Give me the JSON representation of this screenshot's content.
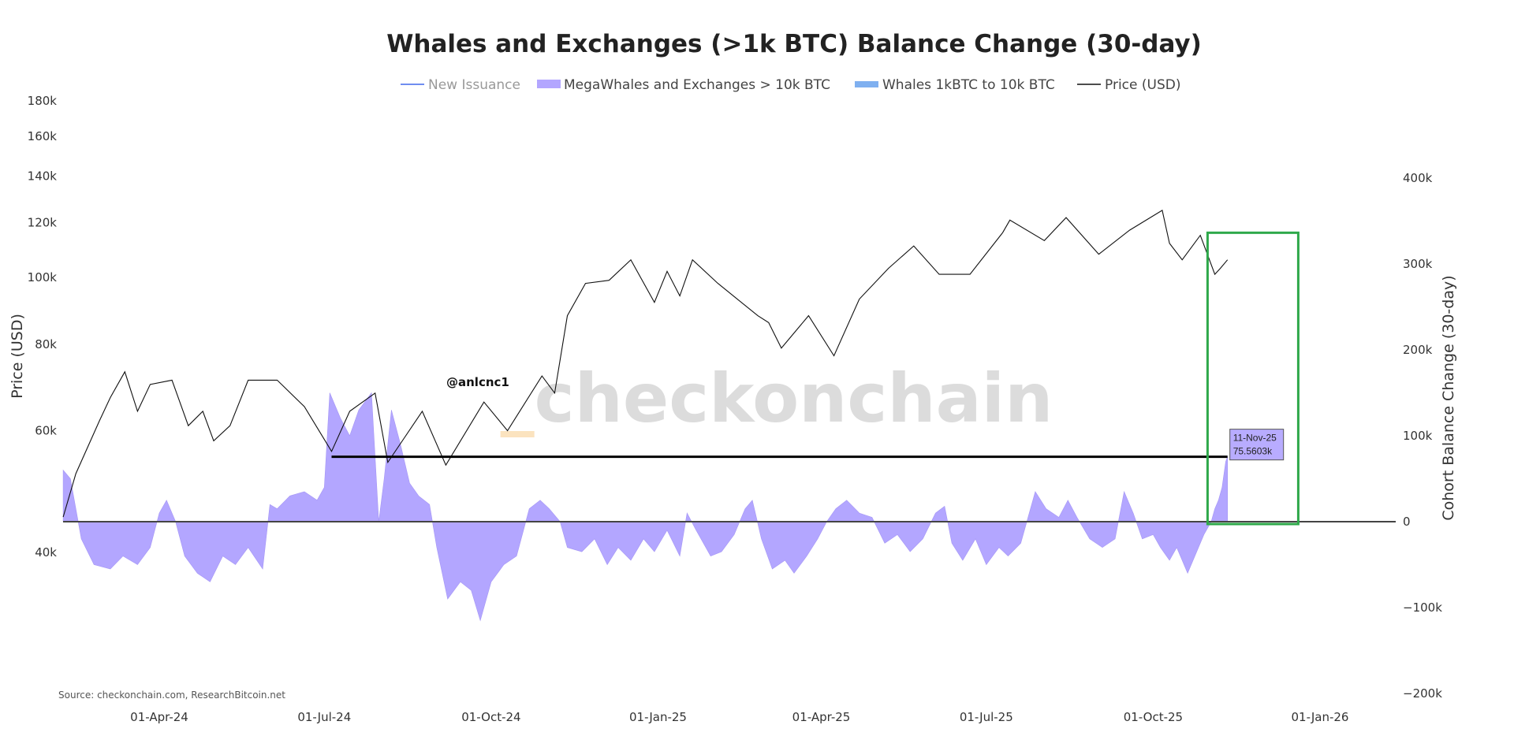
{
  "chart_data": {
    "type": "line+area",
    "title": "Whales and Exchanges (>1k BTC) Balance Change (30-day)",
    "legend": [
      {
        "name": "New Issuance",
        "color": "#6f8df0",
        "kind": "line",
        "hidden": true
      },
      {
        "name": "MegaWhales and Exchanges > 10k BTC",
        "color": "#b3a6ff",
        "kind": "area"
      },
      {
        "name": "Whales 1kBTC to 10k BTC",
        "color": "#7fb0f0",
        "kind": "area"
      },
      {
        "name": "Price (USD)",
        "color": "#111111",
        "kind": "line"
      }
    ],
    "legend_placement": "top-center",
    "ylabel_left": "Price (USD)",
    "ylabel_right": "Cohort Balance Change (30-day)",
    "left_axis": {
      "scale": "log",
      "ticks": [
        "180k",
        "160k",
        "140k",
        "120k",
        "100k",
        "80k",
        "60k",
        "40k"
      ],
      "tick_values": [
        180000,
        160000,
        140000,
        120000,
        100000,
        80000,
        60000,
        40000
      ],
      "range": [
        40000,
        180000
      ]
    },
    "right_axis": {
      "scale": "linear",
      "ticks": [
        "400k",
        "300k",
        "200k",
        "100k",
        "0",
        "−100k",
        "−200k"
      ],
      "tick_values": [
        400000,
        300000,
        200000,
        100000,
        0,
        -100000,
        -200000
      ],
      "range": [
        -200000,
        400000
      ]
    },
    "x_ticks": [
      "01-Apr-24",
      "01-Jul-24",
      "01-Oct-24",
      "01-Jan-25",
      "01-Apr-25",
      "01-Jul-25",
      "01-Oct-25",
      "01-Jan-26"
    ],
    "x_tick_dates": [
      "2024-04-01",
      "2024-07-01",
      "2024-10-01",
      "2025-01-01",
      "2025-04-01",
      "2025-07-01",
      "2025-10-01",
      "2026-01-01"
    ],
    "price_series": [
      [
        "2024-02-08",
        45000
      ],
      [
        "2024-02-15",
        52000
      ],
      [
        "2024-02-28",
        62000
      ],
      [
        "2024-03-05",
        67000
      ],
      [
        "2024-03-13",
        73000
      ],
      [
        "2024-03-20",
        64000
      ],
      [
        "2024-03-27",
        70000
      ],
      [
        "2024-04-08",
        71000
      ],
      [
        "2024-04-17",
        61000
      ],
      [
        "2024-04-25",
        64000
      ],
      [
        "2024-05-01",
        58000
      ],
      [
        "2024-05-10",
        61000
      ],
      [
        "2024-05-20",
        71000
      ],
      [
        "2024-06-05",
        71000
      ],
      [
        "2024-06-20",
        65000
      ],
      [
        "2024-07-05",
        56000
      ],
      [
        "2024-07-15",
        64000
      ],
      [
        "2024-07-29",
        68000
      ],
      [
        "2024-08-05",
        54000
      ],
      [
        "2024-08-24",
        64000
      ],
      [
        "2024-09-06",
        53500
      ],
      [
        "2024-09-27",
        66000
      ],
      [
        "2024-10-10",
        60000
      ],
      [
        "2024-10-29",
        72000
      ],
      [
        "2024-11-05",
        68000
      ],
      [
        "2024-11-12",
        88000
      ],
      [
        "2024-11-22",
        98000
      ],
      [
        "2024-12-05",
        99000
      ],
      [
        "2024-12-17",
        106000
      ],
      [
        "2024-12-30",
        92000
      ],
      [
        "2025-01-06",
        102000
      ],
      [
        "2025-01-13",
        94000
      ],
      [
        "2025-01-20",
        106000
      ],
      [
        "2025-02-03",
        98000
      ],
      [
        "2025-02-25",
        88000
      ],
      [
        "2025-03-03",
        86000
      ],
      [
        "2025-03-10",
        79000
      ],
      [
        "2025-03-25",
        88000
      ],
      [
        "2025-04-08",
        77000
      ],
      [
        "2025-04-22",
        93000
      ],
      [
        "2025-05-08",
        103000
      ],
      [
        "2025-05-22",
        111000
      ],
      [
        "2025-06-05",
        101000
      ],
      [
        "2025-06-22",
        101000
      ],
      [
        "2025-07-10",
        116000
      ],
      [
        "2025-07-14",
        121000
      ],
      [
        "2025-08-02",
        113000
      ],
      [
        "2025-08-14",
        122000
      ],
      [
        "2025-09-01",
        108000
      ],
      [
        "2025-09-18",
        117000
      ],
      [
        "2025-10-06",
        125000
      ],
      [
        "2025-10-10",
        112000
      ],
      [
        "2025-10-17",
        106000
      ],
      [
        "2025-10-27",
        115000
      ],
      [
        "2025-11-04",
        101000
      ],
      [
        "2025-11-07",
        103000
      ],
      [
        "2025-11-11",
        106000
      ]
    ],
    "balance_series": [
      [
        "2024-02-08",
        60000
      ],
      [
        "2024-02-12",
        50000
      ],
      [
        "2024-02-18",
        -20000
      ],
      [
        "2024-02-25",
        -50000
      ],
      [
        "2024-03-05",
        -55000
      ],
      [
        "2024-03-12",
        -40000
      ],
      [
        "2024-03-20",
        -50000
      ],
      [
        "2024-03-27",
        -30000
      ],
      [
        "2024-04-01",
        10000
      ],
      [
        "2024-04-05",
        25000
      ],
      [
        "2024-04-10",
        0
      ],
      [
        "2024-04-15",
        -40000
      ],
      [
        "2024-04-22",
        -60000
      ],
      [
        "2024-04-29",
        -70000
      ],
      [
        "2024-05-06",
        -40000
      ],
      [
        "2024-05-13",
        -50000
      ],
      [
        "2024-05-20",
        -30000
      ],
      [
        "2024-05-28",
        -55000
      ],
      [
        "2024-06-01",
        20000
      ],
      [
        "2024-06-05",
        15000
      ],
      [
        "2024-06-12",
        30000
      ],
      [
        "2024-06-20",
        35000
      ],
      [
        "2024-06-27",
        25000
      ],
      [
        "2024-07-01",
        40000
      ],
      [
        "2024-07-04",
        150000
      ],
      [
        "2024-07-10",
        120000
      ],
      [
        "2024-07-15",
        100000
      ],
      [
        "2024-07-20",
        130000
      ],
      [
        "2024-07-27",
        150000
      ],
      [
        "2024-07-31",
        0
      ],
      [
        "2024-08-03",
        50000
      ],
      [
        "2024-08-07",
        130000
      ],
      [
        "2024-08-12",
        90000
      ],
      [
        "2024-08-17",
        45000
      ],
      [
        "2024-08-22",
        30000
      ],
      [
        "2024-08-28",
        20000
      ],
      [
        "2024-09-01",
        -30000
      ],
      [
        "2024-09-07",
        -90000
      ],
      [
        "2024-09-14",
        -70000
      ],
      [
        "2024-09-20",
        -80000
      ],
      [
        "2024-09-25",
        -115000
      ],
      [
        "2024-10-01",
        -70000
      ],
      [
        "2024-10-08",
        -50000
      ],
      [
        "2024-10-15",
        -40000
      ],
      [
        "2024-10-22",
        15000
      ],
      [
        "2024-10-28",
        25000
      ],
      [
        "2024-11-02",
        15000
      ],
      [
        "2024-11-08",
        0
      ],
      [
        "2024-11-12",
        -30000
      ],
      [
        "2024-11-20",
        -35000
      ],
      [
        "2024-11-27",
        -20000
      ],
      [
        "2024-12-04",
        -50000
      ],
      [
        "2024-12-10",
        -30000
      ],
      [
        "2024-12-17",
        -45000
      ],
      [
        "2024-12-24",
        -20000
      ],
      [
        "2024-12-30",
        -35000
      ],
      [
        "2025-01-06",
        -10000
      ],
      [
        "2025-01-13",
        -40000
      ],
      [
        "2025-01-17",
        10000
      ],
      [
        "2025-01-22",
        -10000
      ],
      [
        "2025-01-30",
        -40000
      ],
      [
        "2025-02-05",
        -35000
      ],
      [
        "2025-02-12",
        -15000
      ],
      [
        "2025-02-18",
        15000
      ],
      [
        "2025-02-22",
        25000
      ],
      [
        "2025-02-27",
        -20000
      ],
      [
        "2025-03-05",
        -55000
      ],
      [
        "2025-03-12",
        -45000
      ],
      [
        "2025-03-17",
        -60000
      ],
      [
        "2025-03-24",
        -40000
      ],
      [
        "2025-03-30",
        -20000
      ],
      [
        "2025-04-04",
        0
      ],
      [
        "2025-04-09",
        15000
      ],
      [
        "2025-04-15",
        25000
      ],
      [
        "2025-04-22",
        10000
      ],
      [
        "2025-04-29",
        5000
      ],
      [
        "2025-05-06",
        -25000
      ],
      [
        "2025-05-13",
        -15000
      ],
      [
        "2025-05-20",
        -35000
      ],
      [
        "2025-05-27",
        -20000
      ],
      [
        "2025-06-03",
        10000
      ],
      [
        "2025-06-08",
        18000
      ],
      [
        "2025-06-12",
        -25000
      ],
      [
        "2025-06-18",
        -45000
      ],
      [
        "2025-06-25",
        -20000
      ],
      [
        "2025-07-01",
        -50000
      ],
      [
        "2025-07-08",
        -30000
      ],
      [
        "2025-07-13",
        -40000
      ],
      [
        "2025-07-20",
        -25000
      ],
      [
        "2025-07-28",
        35000
      ],
      [
        "2025-08-03",
        15000
      ],
      [
        "2025-08-10",
        5000
      ],
      [
        "2025-08-15",
        25000
      ],
      [
        "2025-08-20",
        5000
      ],
      [
        "2025-08-27",
        -20000
      ],
      [
        "2025-09-03",
        -30000
      ],
      [
        "2025-09-10",
        -20000
      ],
      [
        "2025-09-15",
        35000
      ],
      [
        "2025-09-20",
        10000
      ],
      [
        "2025-09-25",
        -20000
      ],
      [
        "2025-10-01",
        -15000
      ],
      [
        "2025-10-05",
        -30000
      ],
      [
        "2025-10-10",
        -45000
      ],
      [
        "2025-10-14",
        -30000
      ],
      [
        "2025-10-20",
        -60000
      ],
      [
        "2025-10-24",
        -40000
      ],
      [
        "2025-10-29",
        -15000
      ],
      [
        "2025-11-02",
        0
      ],
      [
        "2025-11-04",
        15000
      ],
      [
        "2025-11-06",
        25000
      ],
      [
        "2025-11-08",
        40000
      ],
      [
        "2025-11-10",
        70000
      ],
      [
        "2025-11-11",
        75560
      ]
    ],
    "annotations": {
      "reference_line_value": 75560,
      "reference_line_from": "2024-07-05",
      "tooltip_date": "11-Nov-25",
      "tooltip_value": "75.5603k",
      "highlight_box": {
        "from": "2025-10-31",
        "to": "2025-12-20",
        "bottom_value": 0,
        "top_price": 116000,
        "color": "#2ea84a"
      },
      "handle": "@anlcnc1",
      "watermark": "_checkonchain"
    },
    "source": "Source: checkonchain.com, ResearchBitcoin.net"
  }
}
